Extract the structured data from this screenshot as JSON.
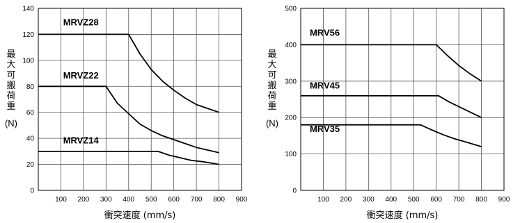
{
  "chart_data": [
    {
      "type": "line",
      "ylabel": "最大可搬荷重",
      "yunit": "(N)",
      "xlabel": "衝突速度 (mm/s)",
      "xlim": [
        0,
        900
      ],
      "ylim": [
        0,
        140
      ],
      "x_ticks": [
        100,
        200,
        300,
        400,
        500,
        600,
        700,
        800,
        900
      ],
      "y_ticks": [
        0,
        20,
        40,
        60,
        80,
        100,
        120,
        140
      ],
      "grid": true,
      "series": [
        {
          "name": "MRVZ28",
          "label_at": [
            110,
            127
          ],
          "x": [
            0,
            400,
            450,
            500,
            550,
            600,
            650,
            700,
            750,
            800
          ],
          "y": [
            120,
            120,
            105,
            93,
            84,
            77,
            71,
            66,
            63,
            60
          ]
        },
        {
          "name": "MRVZ22",
          "label_at": [
            110,
            86
          ],
          "x": [
            0,
            300,
            350,
            400,
            450,
            500,
            550,
            600,
            650,
            700,
            750,
            800
          ],
          "y": [
            80,
            80,
            67,
            59,
            51,
            46,
            42,
            39,
            36,
            33,
            31,
            29
          ]
        },
        {
          "name": "MRVZ14",
          "label_at": [
            110,
            36
          ],
          "x": [
            0,
            530,
            580,
            630,
            680,
            730,
            800
          ],
          "y": [
            30,
            30,
            27,
            25,
            23,
            22,
            20
          ]
        }
      ]
    },
    {
      "type": "line",
      "ylabel": "最大可搬荷重",
      "yunit": "(N)",
      "xlabel": "衝突速度 (mm/s)",
      "xlim": [
        0,
        900
      ],
      "ylim": [
        0,
        500
      ],
      "x_ticks": [
        100,
        200,
        300,
        400,
        500,
        600,
        700,
        800,
        900
      ],
      "y_ticks": [
        0,
        100,
        200,
        300,
        400,
        500
      ],
      "grid": true,
      "series": [
        {
          "name": "MRV56",
          "label_at": [
            40,
            425
          ],
          "x": [
            0,
            600,
            650,
            700,
            750,
            800
          ],
          "y": [
            400,
            400,
            370,
            343,
            320,
            300
          ]
        },
        {
          "name": "MRV45",
          "label_at": [
            40,
            280
          ],
          "x": [
            0,
            610,
            660,
            710,
            760,
            800
          ],
          "y": [
            260,
            260,
            242,
            227,
            212,
            200
          ]
        },
        {
          "name": "MRV35",
          "label_at": [
            40,
            160
          ],
          "x": [
            0,
            530,
            580,
            630,
            680,
            730,
            800
          ],
          "y": [
            180,
            180,
            166,
            153,
            142,
            133,
            120
          ]
        }
      ]
    }
  ]
}
